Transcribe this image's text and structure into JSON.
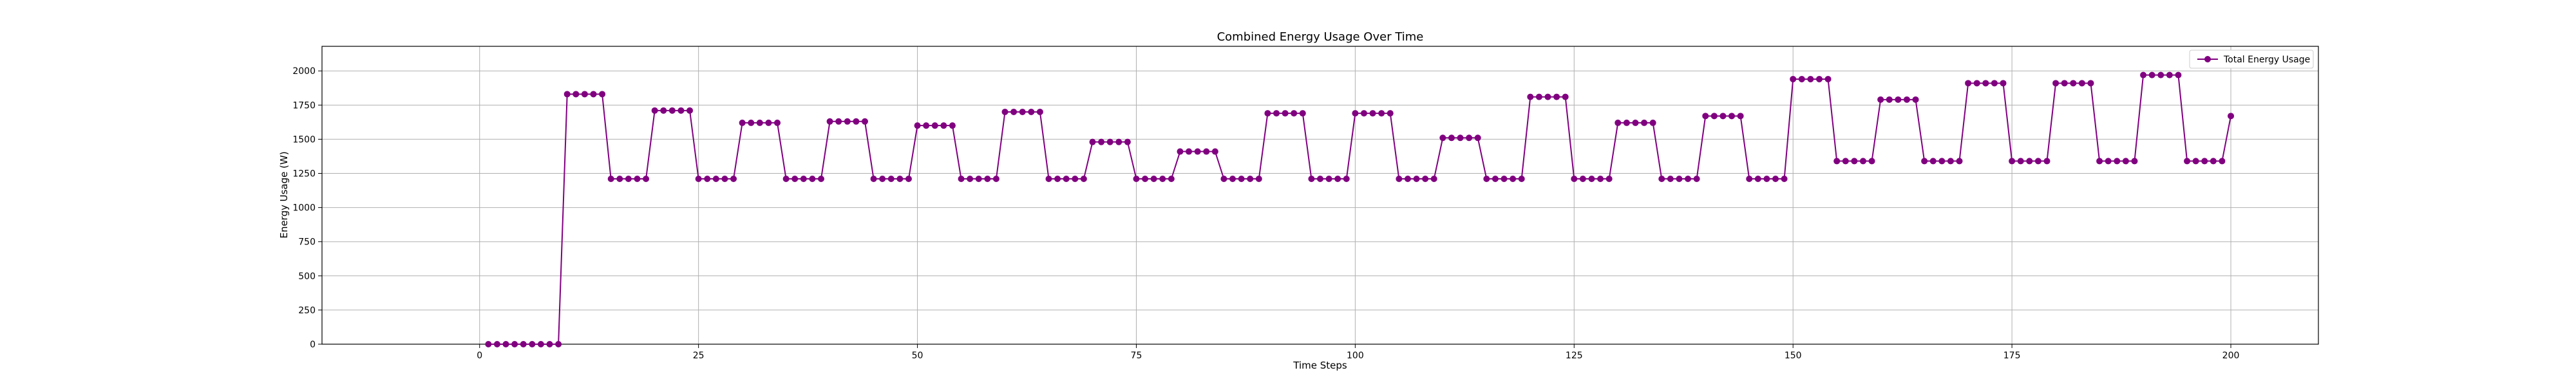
{
  "chart_data": {
    "type": "line",
    "title": "Combined Energy Usage Over Time",
    "xlabel": "Time Steps",
    "ylabel": "Energy Usage (W)",
    "xlim": [
      -18,
      210
    ],
    "ylim": [
      0,
      2180
    ],
    "xticks": [
      0,
      25,
      50,
      75,
      100,
      125,
      150,
      175,
      200
    ],
    "yticks": [
      0,
      250,
      500,
      750,
      1000,
      1250,
      1500,
      1750,
      2000
    ],
    "grid": true,
    "legend_position": "top-right",
    "colors": {
      "series": "#800080"
    },
    "series": [
      {
        "name": "Total Energy Usage",
        "x": [
          1,
          2,
          3,
          4,
          5,
          6,
          7,
          8,
          9,
          10,
          11,
          12,
          13,
          14,
          15,
          16,
          17,
          18,
          19,
          20,
          21,
          22,
          23,
          24,
          25,
          26,
          27,
          28,
          29,
          30,
          31,
          32,
          33,
          34,
          35,
          36,
          37,
          38,
          39,
          40,
          41,
          42,
          43,
          44,
          45,
          46,
          47,
          48,
          49,
          50,
          51,
          52,
          53,
          54,
          55,
          56,
          57,
          58,
          59,
          60,
          61,
          62,
          63,
          64,
          65,
          66,
          67,
          68,
          69,
          70,
          71,
          72,
          73,
          74,
          75,
          76,
          77,
          78,
          79,
          80,
          81,
          82,
          83,
          84,
          85,
          86,
          87,
          88,
          89,
          90,
          91,
          92,
          93,
          94,
          95,
          96,
          97,
          98,
          99,
          100,
          101,
          102,
          103,
          104,
          105,
          106,
          107,
          108,
          109,
          110,
          111,
          112,
          113,
          114,
          115,
          116,
          117,
          118,
          119,
          120,
          121,
          122,
          123,
          124,
          125,
          126,
          127,
          128,
          129,
          130,
          131,
          132,
          133,
          134,
          135,
          136,
          137,
          138,
          139,
          140,
          141,
          142,
          143,
          144,
          145,
          146,
          147,
          148,
          149,
          150,
          151,
          152,
          153,
          154,
          155,
          156,
          157,
          158,
          159,
          160,
          161,
          162,
          163,
          164,
          165,
          166,
          167,
          168,
          169,
          170,
          171,
          172,
          173,
          174,
          175,
          176,
          177,
          178,
          179,
          180,
          181,
          182,
          183,
          184,
          185,
          186,
          187,
          188,
          189,
          190,
          191,
          192,
          193,
          194,
          195,
          196,
          197,
          198,
          199,
          200
        ],
        "y": [
          0,
          0,
          0,
          0,
          0,
          0,
          0,
          0,
          0,
          1830,
          1830,
          1830,
          1830,
          1830,
          1210,
          1210,
          1210,
          1210,
          1210,
          1710,
          1710,
          1710,
          1710,
          1710,
          1210,
          1210,
          1210,
          1210,
          1210,
          1620,
          1620,
          1620,
          1620,
          1620,
          1210,
          1210,
          1210,
          1210,
          1210,
          1630,
          1630,
          1630,
          1630,
          1630,
          1210,
          1210,
          1210,
          1210,
          1210,
          1600,
          1600,
          1600,
          1600,
          1600,
          1210,
          1210,
          1210,
          1210,
          1210,
          1700,
          1700,
          1700,
          1700,
          1700,
          1210,
          1210,
          1210,
          1210,
          1210,
          1480,
          1480,
          1480,
          1480,
          1480,
          1210,
          1210,
          1210,
          1210,
          1210,
          1410,
          1410,
          1410,
          1410,
          1410,
          1210,
          1210,
          1210,
          1210,
          1210,
          1690,
          1690,
          1690,
          1690,
          1690,
          1210,
          1210,
          1210,
          1210,
          1210,
          1690,
          1690,
          1690,
          1690,
          1690,
          1210,
          1210,
          1210,
          1210,
          1210,
          1510,
          1510,
          1510,
          1510,
          1510,
          1210,
          1210,
          1210,
          1210,
          1210,
          1810,
          1810,
          1810,
          1810,
          1810,
          1210,
          1210,
          1210,
          1210,
          1210,
          1620,
          1620,
          1620,
          1620,
          1620,
          1210,
          1210,
          1210,
          1210,
          1210,
          1670,
          1670,
          1670,
          1670,
          1670,
          1210,
          1210,
          1210,
          1210,
          1210,
          1940,
          1940,
          1940,
          1940,
          1940,
          1340,
          1340,
          1340,
          1340,
          1340,
          1790,
          1790,
          1790,
          1790,
          1790,
          1340,
          1340,
          1340,
          1340,
          1340,
          1910,
          1910,
          1910,
          1910,
          1910,
          1340,
          1340,
          1340,
          1340,
          1340,
          1910,
          1910,
          1910,
          1910,
          1910,
          1340,
          1340,
          1340,
          1340,
          1340,
          1970,
          1970,
          1970,
          1970,
          1970,
          1340,
          1340,
          1340,
          1340,
          1340,
          1670
        ]
      }
    ]
  }
}
